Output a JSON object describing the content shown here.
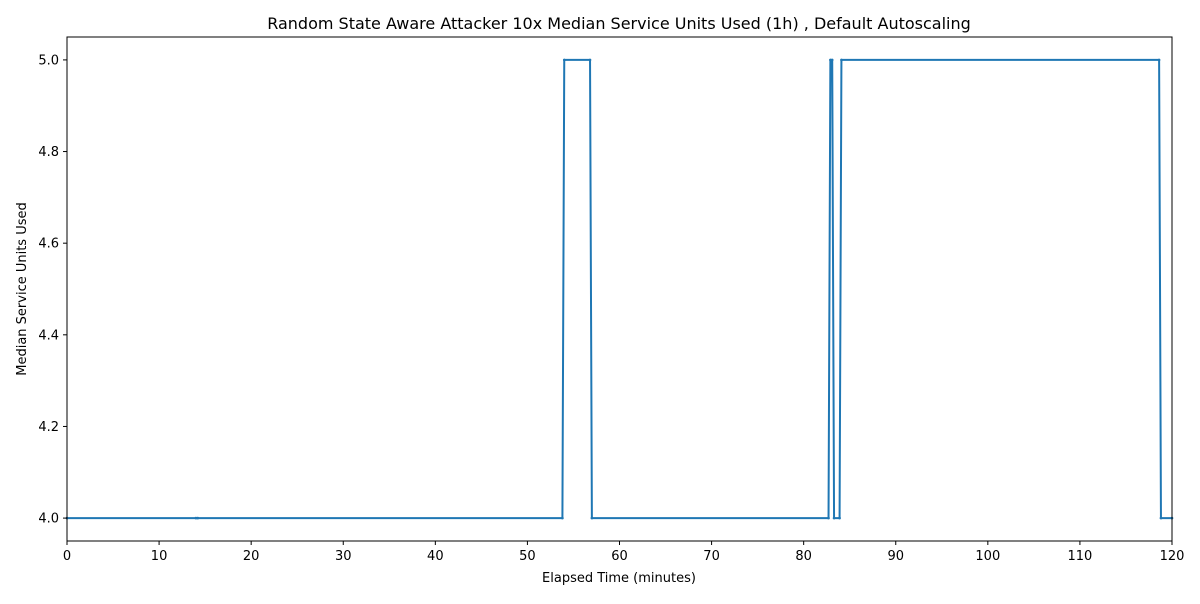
{
  "chart_data": {
    "type": "line",
    "title": "Random State Aware Attacker 10x Median Service Units Used (1h) , Default Autoscaling",
    "xlabel": "Elapsed Time (minutes)",
    "ylabel": "Median Service Units Used",
    "xlim": [
      0,
      120
    ],
    "ylim": [
      3.95,
      5.05
    ],
    "xticks": [
      0,
      10,
      20,
      30,
      40,
      50,
      60,
      70,
      80,
      90,
      100,
      110,
      120
    ],
    "xtick_labels": [
      "0",
      "10",
      "20",
      "30",
      "40",
      "50",
      "60",
      "70",
      "80",
      "90",
      "100",
      "110",
      "120"
    ],
    "yticks": [
      4.0,
      4.2,
      4.4,
      4.6,
      4.8,
      5.0
    ],
    "ytick_labels": [
      "4.0",
      "4.2",
      "4.4",
      "4.6",
      "4.8",
      "5.0"
    ],
    "grid": false,
    "series_color": "#1f77b4",
    "series": [
      {
        "x": [
          0,
          14,
          14.2,
          53.8,
          54.0,
          56.8,
          57.0,
          82.7,
          82.9,
          83.1,
          83.3,
          83.9,
          84.1,
          118.6,
          118.8,
          120
        ],
        "y": [
          4.0,
          4.0,
          4.0,
          4.0,
          5.0,
          5.0,
          4.0,
          4.0,
          5.0,
          5.0,
          4.0,
          4.0,
          5.0,
          5.0,
          4.0,
          4.0
        ]
      }
    ]
  }
}
